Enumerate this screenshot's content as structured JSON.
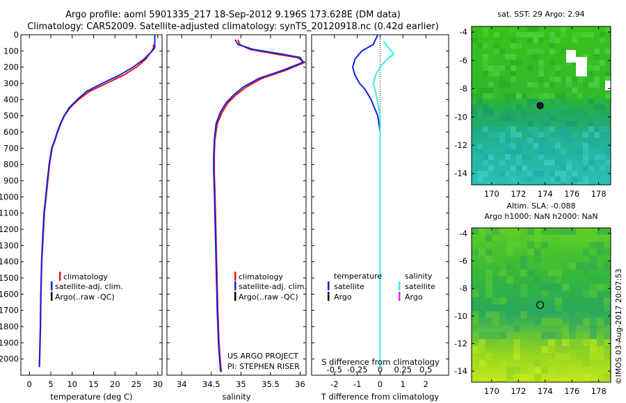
{
  "header": {
    "line1": "Argo profile: aoml 5901335_217 18-Sep-2012 9.196S 173.628E (DM data)",
    "line2": "Climatology: CARS2009. Satellite-adjusted climatology: synTS_20120918.nc (0.42d earlier)"
  },
  "notes": {
    "project": "US ARGO PROJECT",
    "pi": "PI: STEPHEN RISER",
    "side": "©IMOS 03-Aug-2017 20:07:53"
  },
  "colors": {
    "climatology": "#ee1111",
    "satellite": "#1020e0",
    "argo": "#000000",
    "salinity_satellite": "#33eeee",
    "salinity_argo": "#ee22ee"
  },
  "chart_data": [
    {
      "type": "line",
      "xlabel": "temperature (deg C)",
      "ylabel": "",
      "xlim": [
        -2,
        31
      ],
      "ylim": [
        2100,
        0
      ],
      "xticks": [
        0,
        5,
        10,
        15,
        20,
        25,
        30
      ],
      "yticks": [
        0,
        100,
        200,
        300,
        400,
        500,
        600,
        700,
        800,
        900,
        1000,
        1100,
        1200,
        1300,
        1400,
        1500,
        1600,
        1700,
        1800,
        1900,
        2000
      ],
      "legend": [
        "climatology",
        "satellite-adj. clim.",
        "Argo(..raw -QC)"
      ],
      "legend_position": "lower-right",
      "series": [
        {
          "name": "climatology",
          "color": "#ee1111",
          "x": [
            29.0,
            29.0,
            28.6,
            27.2,
            25.0,
            22.0,
            18.0,
            14.0,
            11.5,
            9.5,
            8.2,
            7.3,
            6.6,
            6.0,
            5.3,
            4.7,
            4.3,
            3.9,
            3.5,
            3.3,
            3.1,
            2.9,
            2.8,
            2.7,
            2.65,
            2.6,
            2.55,
            2.5,
            2.45,
            2.4,
            2.35
          ],
          "y": [
            60,
            80,
            100,
            150,
            200,
            250,
            300,
            350,
            400,
            450,
            500,
            550,
            600,
            650,
            700,
            800,
            900,
            1000,
            1100,
            1200,
            1300,
            1400,
            1500,
            1600,
            1700,
            1800,
            1850,
            1900,
            1950,
            2000,
            2050
          ]
        },
        {
          "name": "satellite-adj. clim.",
          "color": "#1020e0",
          "x": [
            29.3,
            29.3,
            28.7,
            26.8,
            24.2,
            21.0,
            17.0,
            13.3,
            11.2,
            9.3,
            8.1,
            7.2,
            6.5,
            5.9,
            5.2,
            4.6,
            4.2,
            3.8,
            3.4,
            3.2,
            3.0,
            2.85,
            2.75,
            2.65,
            2.6,
            2.55,
            2.5,
            2.45,
            2.4,
            2.35,
            2.3
          ],
          "y": [
            0,
            80,
            100,
            150,
            200,
            250,
            300,
            350,
            400,
            450,
            500,
            550,
            600,
            650,
            700,
            800,
            900,
            1000,
            1100,
            1200,
            1300,
            1400,
            1500,
            1600,
            1700,
            1800,
            1850,
            1900,
            1950,
            2000,
            2050
          ]
        }
      ]
    },
    {
      "type": "line",
      "xlabel": "salinity",
      "ylabel": "",
      "xlim": [
        33.75,
        36.1
      ],
      "ylim": [
        2100,
        0
      ],
      "xticks": [
        34,
        34.5,
        35,
        35.5,
        36
      ],
      "xticklabels": [
        "34",
        "34.5",
        "35",
        "35.5",
        "36"
      ],
      "legend": [
        "climatology",
        "satellite-adj. clim.",
        "Argo(..raw -QC)"
      ],
      "legend_position": "lower-right",
      "series": [
        {
          "name": "climatology",
          "color": "#ee1111",
          "x": [
            34.95,
            34.98,
            35.15,
            35.6,
            35.95,
            36.08,
            35.75,
            35.35,
            35.1,
            34.92,
            34.78,
            34.68,
            34.6,
            34.56,
            34.55,
            34.55,
            34.56,
            34.57,
            34.58,
            34.59,
            34.6,
            34.61,
            34.62,
            34.63,
            34.64,
            34.65,
            34.66,
            34.67
          ],
          "y": [
            30,
            60,
            90,
            120,
            140,
            170,
            220,
            270,
            320,
            370,
            420,
            480,
            550,
            650,
            750,
            850,
            950,
            1100,
            1250,
            1400,
            1550,
            1700,
            1800,
            1900,
            1950,
            2000,
            2050,
            2080
          ]
        },
        {
          "name": "satellite-adj. clim.",
          "color": "#1020e0",
          "x": [
            34.9,
            34.95,
            35.2,
            35.7,
            36.0,
            36.05,
            35.7,
            35.3,
            35.05,
            34.88,
            34.75,
            34.65,
            34.58,
            34.55,
            34.54,
            34.54,
            34.55,
            34.56,
            34.57,
            34.58,
            34.59,
            34.6,
            34.61,
            34.62,
            34.63,
            34.64,
            34.65,
            34.66
          ],
          "y": [
            30,
            60,
            90,
            120,
            140,
            170,
            220,
            270,
            320,
            370,
            420,
            480,
            550,
            650,
            750,
            850,
            950,
            1100,
            1250,
            1400,
            1550,
            1700,
            1800,
            1900,
            1950,
            2000,
            2050,
            2080
          ]
        }
      ]
    },
    {
      "type": "line",
      "xlabel": "T difference from climatology",
      "xlabel_top": "S difference from climatology",
      "ylabel": "",
      "xlim": [
        -3,
        3
      ],
      "ylim": [
        2100,
        0
      ],
      "xticks": [
        -2,
        -1,
        0,
        1,
        2
      ],
      "top_ticks": [
        -0.5,
        -0.25,
        0,
        0.25,
        0.5
      ],
      "top_tick_labels": [
        "-0.5",
        "-0.25",
        "0",
        "0.25",
        "0.5"
      ],
      "legend_temperature": {
        "title": "temperature",
        "items": [
          "satellite",
          "Argo"
        ]
      },
      "legend_salinity": {
        "title": "salinity",
        "items": [
          "satellite",
          "Argo"
        ]
      },
      "series": [
        {
          "name": "satellite",
          "group": "temperature",
          "color": "#1020e0",
          "x": [
            -0.1,
            -0.3,
            -0.8,
            -1.1,
            -1.2,
            -1.1,
            -0.9,
            -0.7,
            -0.6,
            -0.4,
            -0.25,
            -0.1,
            0.0,
            0.0,
            0.0,
            0.0,
            0.0,
            0.0,
            0.0,
            0.0,
            0.0,
            0.0,
            0.0,
            0.0
          ],
          "y": [
            0,
            60,
            100,
            150,
            200,
            250,
            300,
            330,
            350,
            400,
            450,
            500,
            600,
            800,
            1000,
            1200,
            1300,
            1400,
            1500,
            1600,
            1700,
            1800,
            1950,
            2050
          ]
        },
        {
          "name": "satellite",
          "group": "salinity",
          "color": "#33eeee",
          "x": [
            0.15,
            0.3,
            0.5,
            0.6,
            0.3,
            0.0,
            -0.2,
            -0.3,
            -0.2,
            -0.1,
            0.0,
            0.0,
            0.0,
            0.0,
            0.0,
            0.0,
            0.0,
            0.0,
            0.0
          ],
          "y": [
            40,
            70,
            100,
            120,
            150,
            200,
            250,
            300,
            350,
            420,
            500,
            600,
            800,
            1000,
            1200,
            1400,
            1600,
            1800,
            2050
          ]
        }
      ]
    }
  ],
  "maps": [
    {
      "title_lines": [
        "sat. SST: 29 Argo: 2.94"
      ],
      "xticks": [
        170,
        172,
        174,
        176,
        178
      ],
      "yticks": [
        -4,
        -6,
        -8,
        -10,
        -12,
        -14
      ],
      "xlim": [
        168.5,
        178.9
      ],
      "ylim": [
        -14.8,
        -3.6
      ],
      "marker": {
        "lon": 173.628,
        "lat": -9.196
      }
    },
    {
      "title_lines": [
        "Altim. SLA: -0.088",
        "Argo h1000: NaN h2000: NaN"
      ],
      "xticks": [
        170,
        172,
        174,
        176,
        178
      ],
      "yticks": [
        -4,
        -6,
        -8,
        -10,
        -12,
        -14
      ],
      "xlim": [
        168.5,
        178.9
      ],
      "ylim": [
        -14.8,
        -3.6
      ],
      "marker": {
        "lon": 173.628,
        "lat": -9.196
      }
    }
  ]
}
